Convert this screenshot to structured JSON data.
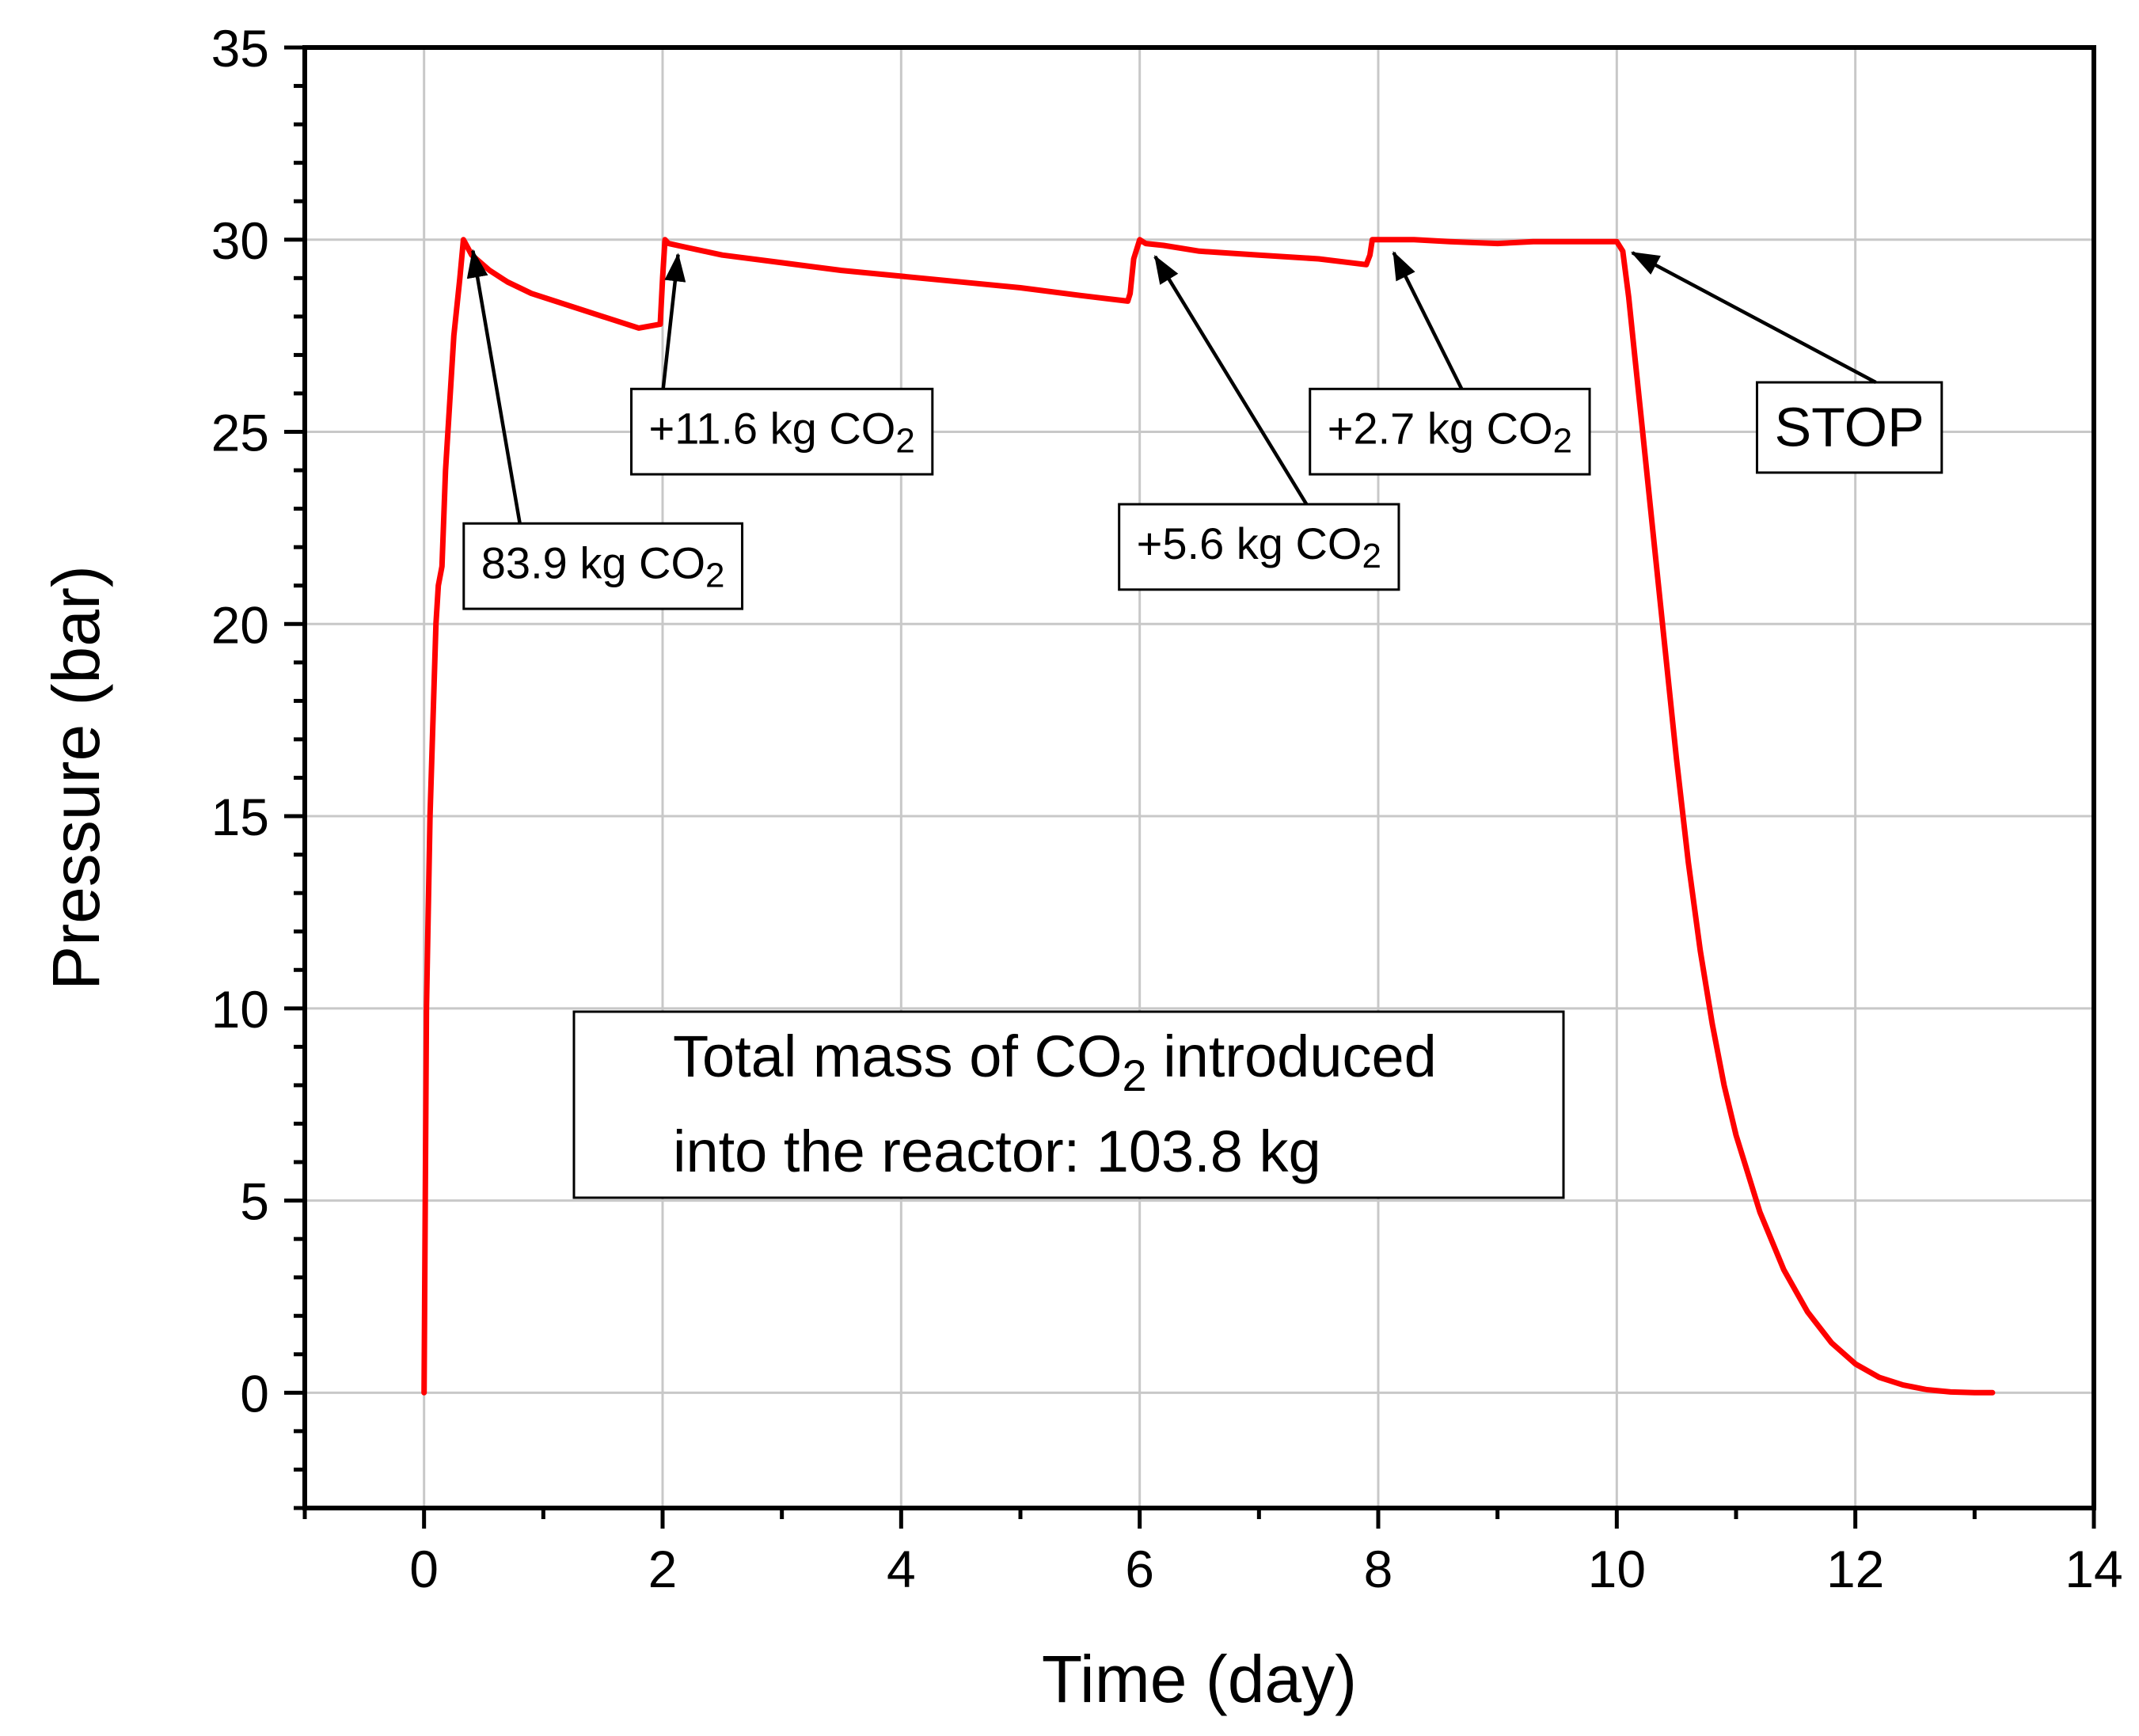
{
  "colors": {
    "series": "#ff0000",
    "grid": "#c8c8c8",
    "axis": "#000000",
    "background": "#ffffff"
  },
  "chart_data": {
    "type": "line",
    "title": "",
    "xlabel": "Time (day)",
    "ylabel": "Pressure (bar)",
    "xlim": [
      -1,
      14
    ],
    "ylim": [
      -3,
      35
    ],
    "grid": true,
    "x_ticks": [
      0,
      2,
      4,
      6,
      8,
      10,
      12,
      14
    ],
    "y_ticks": [
      0,
      5,
      10,
      15,
      20,
      25,
      30,
      35
    ],
    "x_tick_labels": [
      "0",
      "2",
      "4",
      "6",
      "8",
      "10",
      "12",
      "14"
    ],
    "y_tick_labels": [
      "0",
      "5",
      "10",
      "15",
      "20",
      "25",
      "30",
      "35"
    ],
    "series": [
      {
        "name": "Pressure",
        "x": [
          0,
          0.02,
          0.05,
          0.08,
          0.1,
          0.12,
          0.15,
          0.18,
          0.2,
          0.25,
          0.3,
          0.33,
          0.4,
          0.55,
          0.7,
          0.9,
          1.2,
          1.5,
          1.8,
          1.98,
          2.0,
          2.02,
          2.05,
          2.2,
          2.5,
          3.0,
          3.5,
          4.0,
          4.5,
          5.0,
          5.5,
          5.9,
          5.92,
          5.95,
          6.0,
          6.05,
          6.2,
          6.5,
          7.0,
          7.5,
          7.9,
          7.93,
          7.95,
          8.0,
          8.05,
          8.3,
          8.6,
          9.0,
          9.3,
          9.6,
          9.8,
          10.0,
          10.05,
          10.1,
          10.15,
          10.2,
          10.3,
          10.4,
          10.5,
          10.6,
          10.7,
          10.8,
          10.9,
          11.0,
          11.2,
          11.4,
          11.6,
          11.8,
          12.0,
          12.2,
          12.4,
          12.6,
          12.8,
          13.0,
          13.15
        ],
        "y": [
          0,
          10,
          15,
          18,
          20,
          21,
          21.5,
          24,
          25,
          27.5,
          29,
          30,
          29.6,
          29.2,
          28.9,
          28.6,
          28.3,
          28.0,
          27.7,
          27.8,
          29.0,
          30.0,
          29.9,
          29.8,
          29.6,
          29.4,
          29.2,
          29.05,
          28.9,
          28.75,
          28.55,
          28.4,
          28.6,
          29.5,
          30.0,
          29.9,
          29.85,
          29.7,
          29.6,
          29.5,
          29.35,
          29.6,
          30.0,
          30.0,
          30.0,
          30.0,
          29.95,
          29.9,
          29.95,
          29.95,
          29.95,
          29.95,
          29.7,
          28.5,
          27.0,
          25.5,
          22.5,
          19.5,
          16.5,
          13.8,
          11.5,
          9.6,
          8.0,
          6.7,
          4.7,
          3.2,
          2.1,
          1.3,
          0.75,
          0.4,
          0.2,
          0.08,
          0.02,
          0.0,
          0.0
        ]
      }
    ],
    "annotations": [
      {
        "id": "a1",
        "text": "83.9 kg CO",
        "sub": "2",
        "target": [
          0.33,
          30.0
        ],
        "label_anchor": [
          1.5,
          21.5
        ]
      },
      {
        "id": "a2",
        "text": "+11.6 kg CO",
        "sub": "2",
        "target": [
          2.05,
          29.9
        ],
        "label_anchor": [
          3.0,
          25.0
        ]
      },
      {
        "id": "a3",
        "text": "+5.6 kg CO",
        "sub": "2",
        "target": [
          6.05,
          29.85
        ],
        "label_anchor": [
          7.0,
          22.0
        ]
      },
      {
        "id": "a4",
        "text": "+2.7 kg CO",
        "sub": "2",
        "target": [
          8.05,
          29.95
        ],
        "label_anchor": [
          8.6,
          25.0
        ]
      },
      {
        "id": "a5",
        "text": "STOP",
        "sub": "",
        "target": [
          10.05,
          29.95
        ],
        "label_anchor": [
          11.95,
          25.0
        ]
      }
    ],
    "info_box": {
      "line1_pre": "Total mass of CO",
      "line1_sub": "2",
      "line1_post": " introduced",
      "line2": "into the reactor: 103.8 kg"
    }
  }
}
